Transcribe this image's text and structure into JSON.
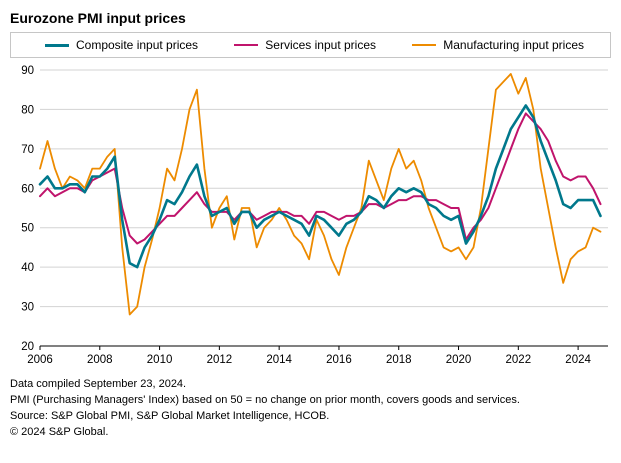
{
  "title": "Eurozone PMI input prices",
  "footer": {
    "line1": "Data compiled September 23, 2024.",
    "line2": "PMI (Purchasing Managers' Index) based on 50 = no change on prior month, covers goods and services.",
    "line3": "Source: S&P Global PMI, S&P Global Market Intelligence, HCOB.",
    "line4": "© 2024 S&P Global."
  },
  "chart_data": {
    "type": "line",
    "title": "Eurozone PMI input prices",
    "xlabel": "",
    "ylabel": "",
    "ylim": [
      20,
      90
    ],
    "y_ticks": [
      20,
      30,
      40,
      50,
      60,
      70,
      80,
      90
    ],
    "x_ticks": [
      2006,
      2008,
      2010,
      2012,
      2014,
      2016,
      2018,
      2020,
      2022,
      2024
    ],
    "grid": "horizontal",
    "legend_position": "top",
    "x": [
      2006.0,
      2006.25,
      2006.5,
      2006.75,
      2007.0,
      2007.25,
      2007.5,
      2007.75,
      2008.0,
      2008.25,
      2008.5,
      2008.75,
      2009.0,
      2009.25,
      2009.5,
      2009.75,
      2010.0,
      2010.25,
      2010.5,
      2010.75,
      2011.0,
      2011.25,
      2011.5,
      2011.75,
      2012.0,
      2012.25,
      2012.5,
      2012.75,
      2013.0,
      2013.25,
      2013.5,
      2013.75,
      2014.0,
      2014.25,
      2014.5,
      2014.75,
      2015.0,
      2015.25,
      2015.5,
      2015.75,
      2016.0,
      2016.25,
      2016.5,
      2016.75,
      2017.0,
      2017.25,
      2017.5,
      2017.75,
      2018.0,
      2018.25,
      2018.5,
      2018.75,
      2019.0,
      2019.25,
      2019.5,
      2019.75,
      2020.0,
      2020.25,
      2020.5,
      2020.75,
      2021.0,
      2021.25,
      2021.5,
      2021.75,
      2022.0,
      2022.25,
      2022.5,
      2022.75,
      2023.0,
      2023.25,
      2023.5,
      2023.75,
      2024.0,
      2024.25,
      2024.5,
      2024.75
    ],
    "series": [
      {
        "name": "Composite input prices",
        "color": "#00788C",
        "width": 2.6,
        "values": [
          61,
          63,
          60,
          60,
          61,
          61,
          59,
          63,
          63,
          65,
          68,
          52,
          41,
          40,
          45,
          48,
          52,
          57,
          56,
          59,
          63,
          66,
          58,
          53,
          54,
          55,
          51,
          54,
          54,
          50,
          52,
          53,
          54,
          53,
          52,
          51,
          48,
          53,
          52,
          50,
          48,
          51,
          52,
          54,
          58,
          57,
          55,
          58,
          60,
          59,
          60,
          59,
          56,
          55,
          53,
          52,
          53,
          46,
          49,
          53,
          58,
          65,
          70,
          75,
          78,
          81,
          78,
          72,
          67,
          62,
          56,
          55,
          57,
          57,
          57,
          53
        ]
      },
      {
        "name": "Services input prices",
        "color": "#C0146C",
        "width": 2,
        "values": [
          58,
          60,
          58,
          59,
          60,
          60,
          59,
          62,
          63,
          64,
          65,
          55,
          48,
          46,
          47,
          49,
          51,
          53,
          53,
          55,
          57,
          59,
          56,
          54,
          54,
          54,
          52,
          54,
          54,
          52,
          53,
          54,
          54,
          54,
          53,
          53,
          51,
          54,
          54,
          53,
          52,
          53,
          53,
          54,
          56,
          56,
          55,
          56,
          57,
          57,
          58,
          58,
          57,
          57,
          56,
          55,
          55,
          47,
          50,
          52,
          55,
          60,
          65,
          70,
          75,
          79,
          77,
          75,
          72,
          67,
          63,
          62,
          63,
          63,
          60,
          56
        ]
      },
      {
        "name": "Manufacturing input prices",
        "color": "#ED8B00",
        "width": 1.8,
        "values": [
          65,
          72,
          65,
          60,
          63,
          62,
          60,
          65,
          65,
          68,
          70,
          45,
          28,
          30,
          40,
          47,
          55,
          65,
          62,
          70,
          80,
          85,
          65,
          50,
          55,
          58,
          47,
          55,
          55,
          45,
          50,
          52,
          55,
          52,
          48,
          46,
          42,
          52,
          48,
          42,
          38,
          45,
          50,
          55,
          67,
          62,
          57,
          65,
          70,
          65,
          67,
          62,
          55,
          50,
          45,
          44,
          45,
          42,
          45,
          55,
          70,
          85,
          87,
          89,
          84,
          88,
          80,
          65,
          55,
          45,
          36,
          42,
          44,
          45,
          50,
          49
        ]
      }
    ]
  }
}
